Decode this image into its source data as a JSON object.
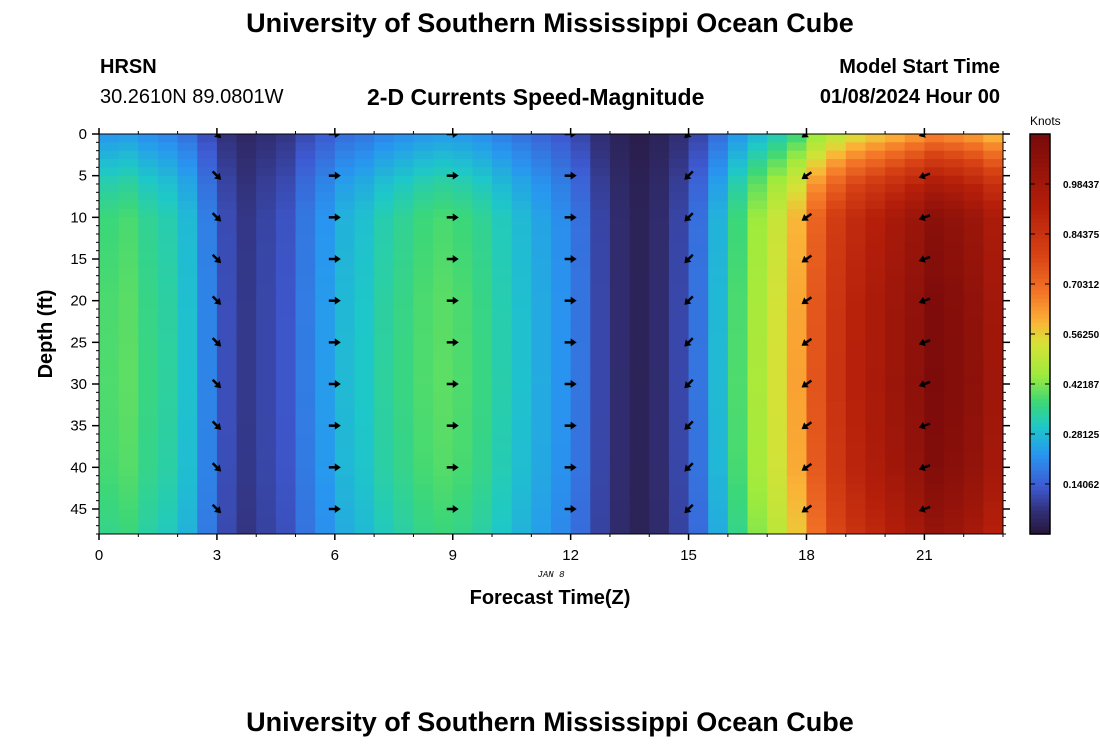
{
  "header": {
    "title": "University of Southern Mississippi Ocean Cube",
    "station": "HRSN",
    "coords": "30.2610N  89.0801W",
    "subtitle": "2-D Currents Speed-Magnitude",
    "model_start_label": "Model Start Time",
    "model_start_value": "01/08/2024 Hour 00"
  },
  "footer": {
    "title": "University of Southern Mississippi Ocean Cube"
  },
  "chart_data": {
    "type": "heatmap",
    "xlabel": "Forecast Time(Z)",
    "ylabel": "Depth (ft)",
    "date_label": "JAN 8",
    "x_ticks": [
      0,
      3,
      6,
      9,
      12,
      15,
      18,
      21
    ],
    "y_ticks": [
      0,
      5,
      10,
      15,
      20,
      25,
      30,
      35,
      40,
      45
    ],
    "xlim": [
      0,
      23
    ],
    "ylim": [
      0,
      48
    ],
    "colorbar": {
      "title": "Knots",
      "ticks": [
        "0.14062",
        "0.28125",
        "0.42187",
        "0.56250",
        "0.70312",
        "0.84375",
        "0.98437"
      ],
      "tick_values": [
        0.140625,
        0.28125,
        0.421875,
        0.5625,
        0.703125,
        0.84375,
        0.984375
      ],
      "range": [
        0,
        1.125
      ]
    },
    "hours": [
      0,
      0.5,
      1,
      1.5,
      2,
      2.5,
      3,
      3.5,
      4,
      4.5,
      5,
      5.5,
      6,
      6.5,
      7,
      7.5,
      8,
      8.5,
      9,
      9.5,
      10,
      10.5,
      11,
      11.5,
      12,
      12.5,
      13,
      13.5,
      14,
      14.5,
      15,
      15.5,
      16,
      16.5,
      17,
      17.5,
      18,
      18.5,
      19,
      19.5,
      20,
      20.5,
      21,
      21.5,
      22,
      22.5
    ],
    "speed_knots": [
      0.33,
      0.34,
      0.31,
      0.29,
      0.25,
      0.17,
      0.1,
      0.07,
      0.09,
      0.11,
      0.16,
      0.2,
      0.24,
      0.26,
      0.29,
      0.31,
      0.33,
      0.34,
      0.33,
      0.31,
      0.28,
      0.25,
      0.22,
      0.19,
      0.15,
      0.09,
      0.05,
      0.03,
      0.05,
      0.09,
      0.15,
      0.24,
      0.33,
      0.4,
      0.46,
      0.53,
      0.64,
      0.72,
      0.78,
      0.82,
      0.86,
      0.9,
      0.95,
      0.93,
      0.9,
      0.85
    ],
    "speed_profile": {
      "depth_ft": [
        0,
        2,
        4,
        6,
        10,
        20,
        30,
        40,
        48
      ],
      "factor": [
        0.68,
        0.8,
        0.9,
        1.0,
        1.12,
        1.16,
        1.17,
        1.15,
        1.08
      ]
    },
    "vector_times": [
      3,
      6,
      9,
      12,
      15,
      18,
      21
    ],
    "vector_depths": [
      0,
      5,
      10,
      15,
      20,
      25,
      30,
      35,
      40,
      45
    ],
    "vector_direction_deg": [
      135,
      90,
      90,
      90,
      225,
      235,
      250
    ]
  }
}
